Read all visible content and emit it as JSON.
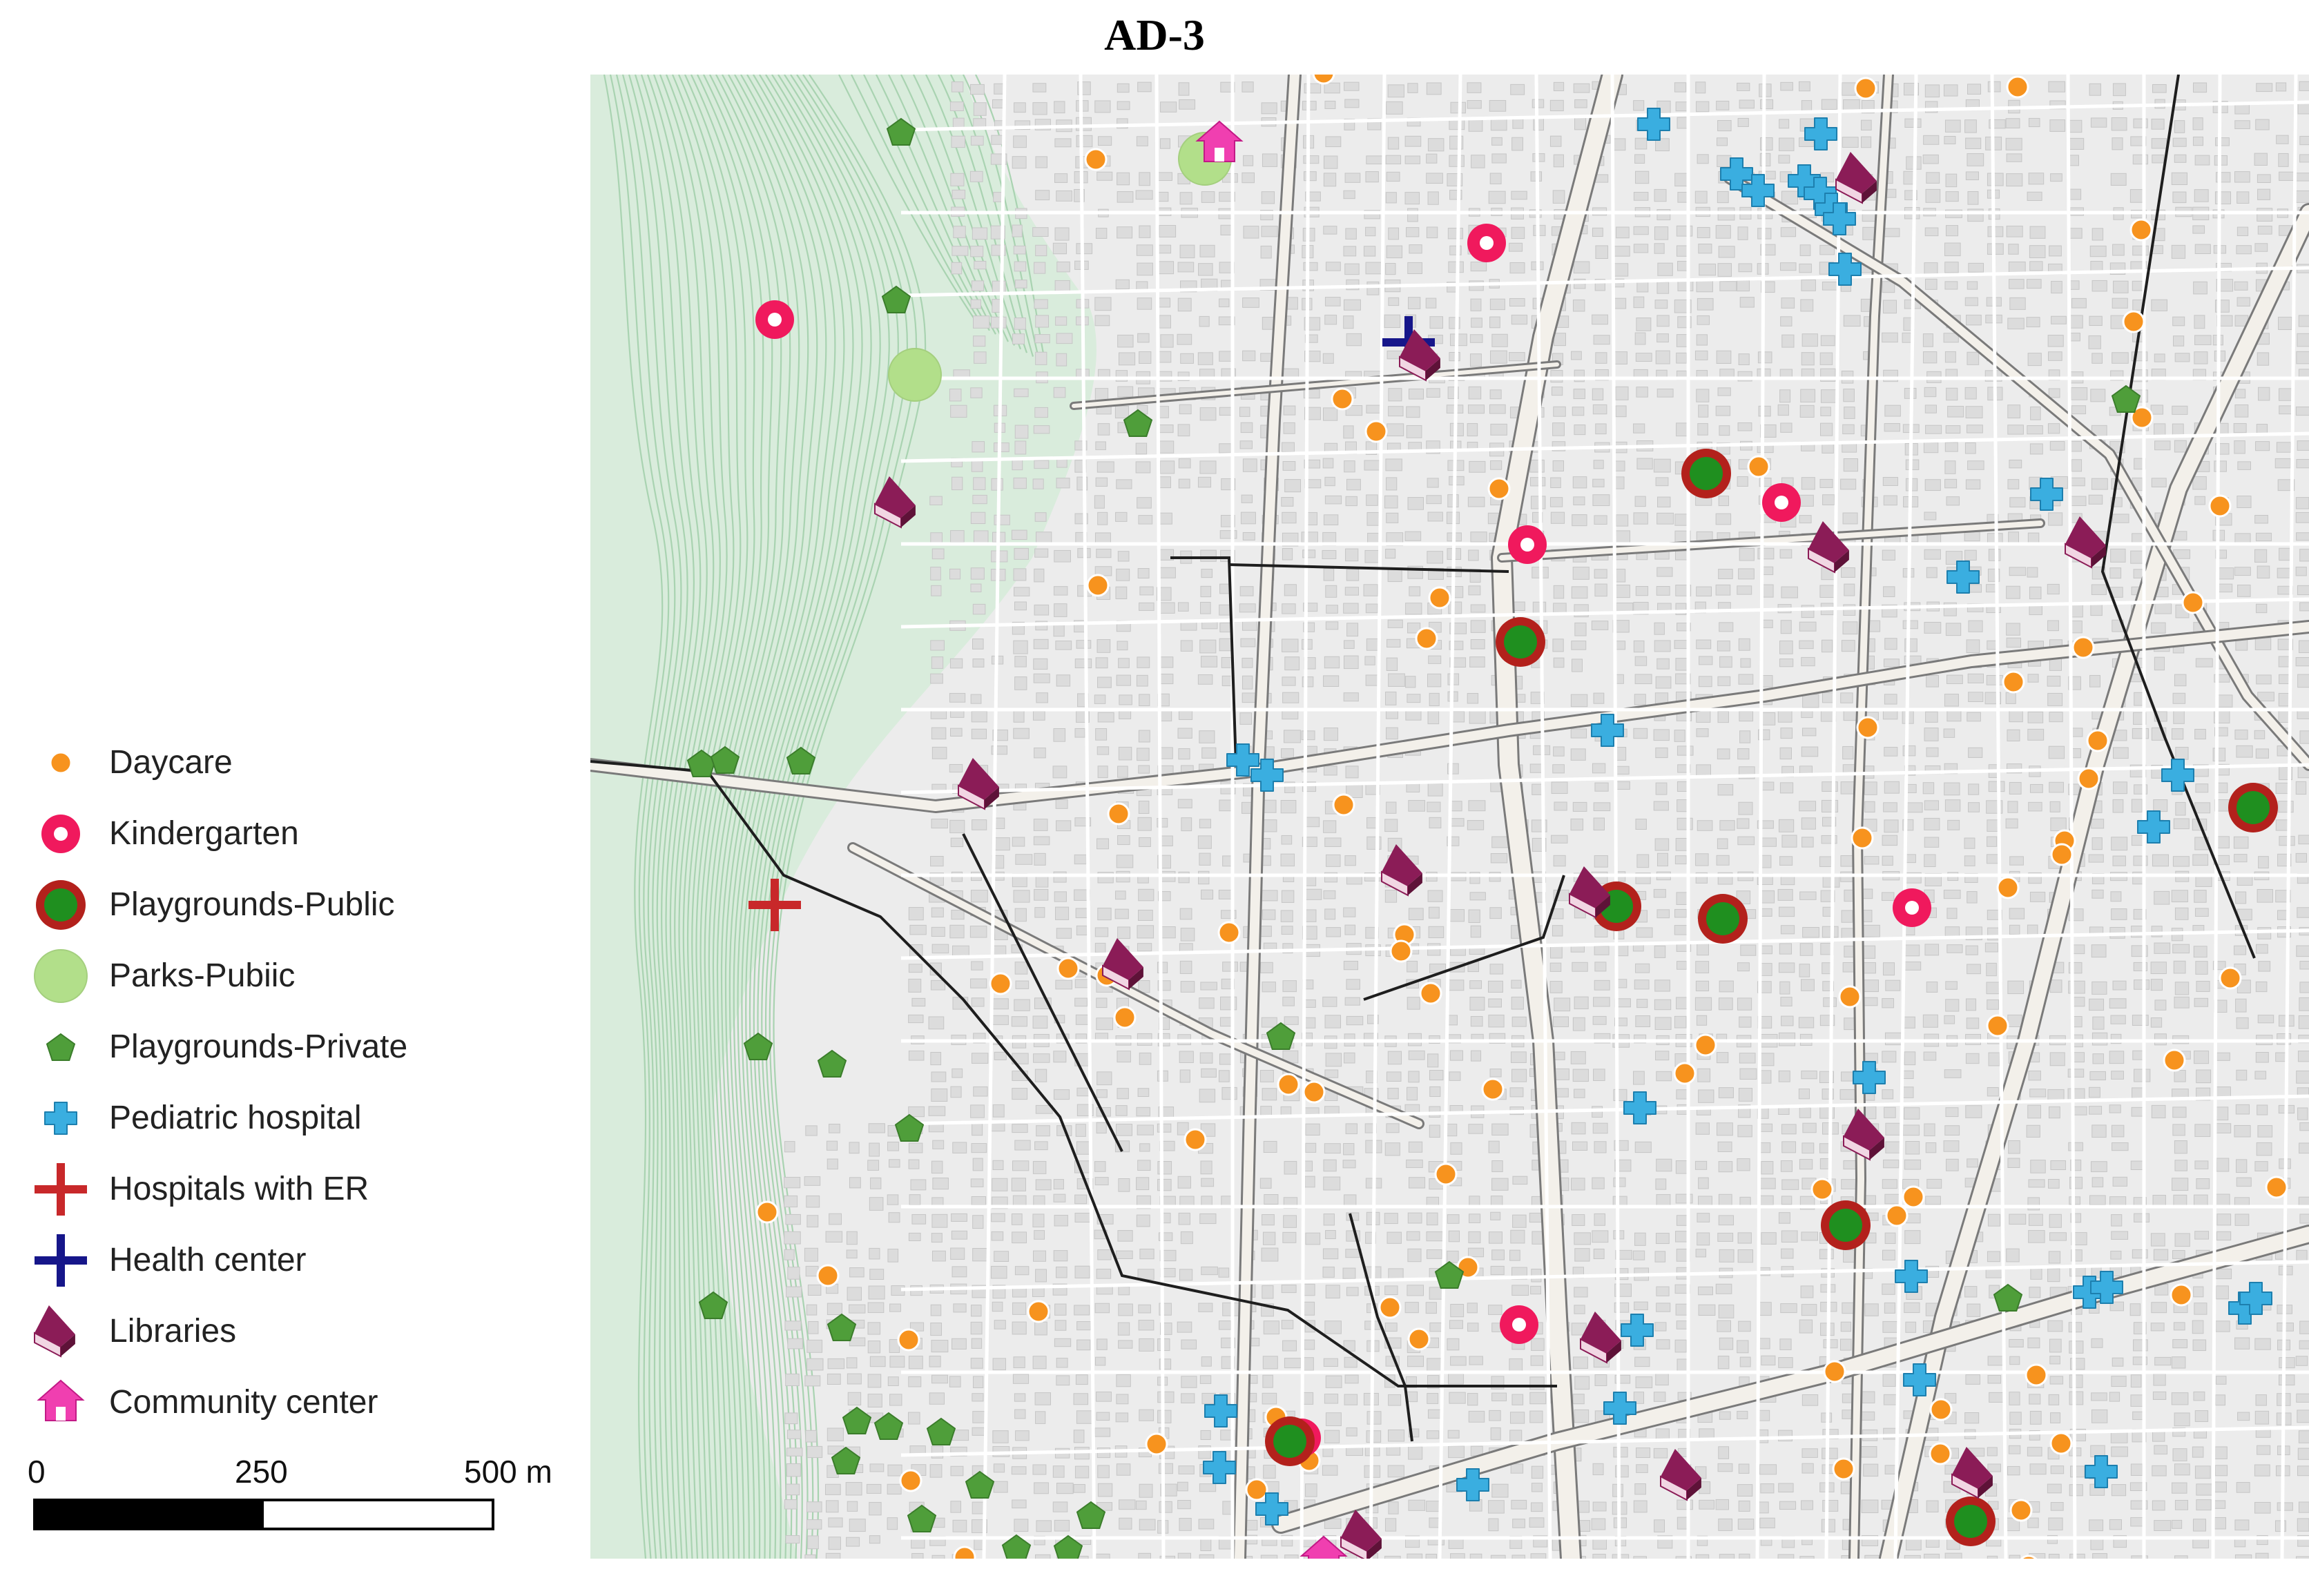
{
  "title": "AD-3",
  "colors": {
    "map_bg": "#ececec",
    "hill": "#d9ecdc",
    "contour": "#a9d3b1",
    "road_minor": "#ffffff",
    "road_major": "#f3f0ea",
    "road_casing": "#7a7a7a",
    "boundary": "#1e1e1e",
    "daycare": "#f7931e",
    "kindergarten": "#f0195d",
    "playground_public_outer": "#b3211c",
    "playground_public_inner": "#1f8f1f",
    "park": "#b2df8a",
    "playground_private": "#4f9e3a",
    "pediatric": "#3aaee0",
    "hospital_er": "#c8282a",
    "health_center": "#16168a",
    "library": "#8b1c57",
    "community_center": "#f03fb0"
  },
  "legend": {
    "items": [
      {
        "label": "Daycare",
        "icon": "daycare-icon"
      },
      {
        "label": "Kindergarten",
        "icon": "kindergarten-icon"
      },
      {
        "label": "Playgrounds-Public",
        "icon": "playground-public-icon"
      },
      {
        "label": "Parks-Pubiic",
        "icon": "park-icon"
      },
      {
        "label": "Playgrounds-Private",
        "icon": "playground-private-icon"
      },
      {
        "label": "Pediatric hospital",
        "icon": "pediatric-hospital-icon"
      },
      {
        "label": "Hospitals with ER",
        "icon": "hospital-er-icon"
      },
      {
        "label": "Health center",
        "icon": "health-center-icon"
      },
      {
        "label": "Libraries",
        "icon": "library-icon"
      },
      {
        "label": "Community center",
        "icon": "community-center-icon"
      }
    ]
  },
  "scale": {
    "ticks": [
      "0",
      "250",
      "500 m"
    ]
  }
}
